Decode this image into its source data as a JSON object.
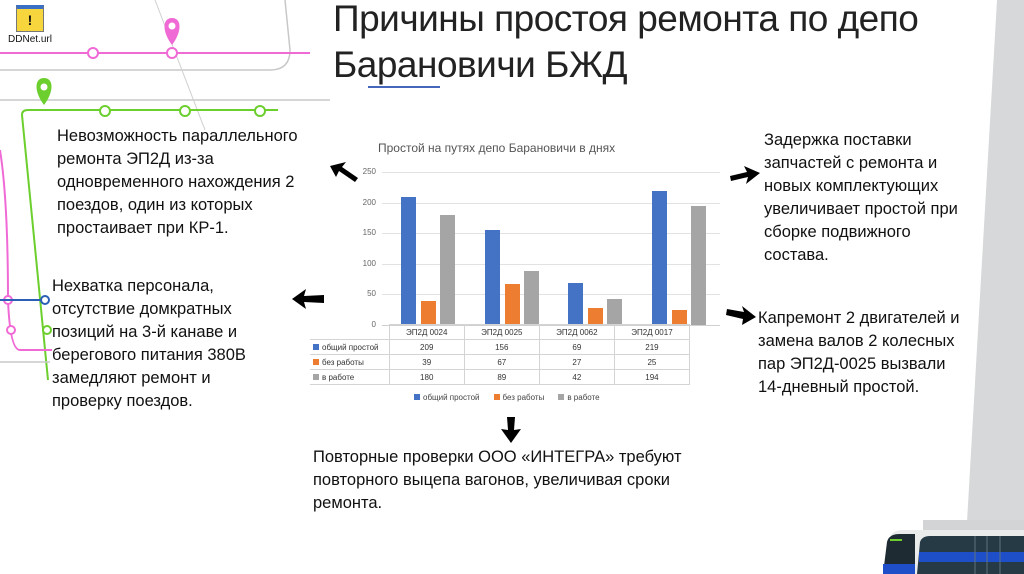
{
  "desktop_icon": {
    "label": "DDNet.url",
    "icon": "warning-shortcut-icon"
  },
  "slide": {
    "title_line1": "Причины простоя ремонта по депо",
    "title_line2": "Барановичи БЖД"
  },
  "notes": {
    "left_top": [
      "Невозможность параллельного",
      "ремонта ЭП2Д из-за",
      "одновременного нахождения 2",
      "поездов, один из которых",
      "простаивает при КР-1."
    ],
    "left_bottom": [
      "Нехватка персонала,",
      "отсутствие домкратных",
      "позиций на 3-й канаве и",
      "берегового питания 380В",
      "замедляют ремонт и",
      "проверку поездов."
    ],
    "right_top": [
      "Задержка поставки",
      "запчастей с ремонта и",
      "новых комплектующих",
      "увеличивает простой при",
      "сборке подвижного",
      "состава."
    ],
    "right_bottom": [
      "Капремонт 2 двигателей и",
      "замена валов 2 колесных",
      "пар ЭП2Д-0025 вызвали",
      "14-дневный простой."
    ],
    "bottom": [
      "Повторные проверки ООО «ИНТЕГРА» требуют",
      "повторного выцепа вагонов, увеличивая сроки",
      "ремонта."
    ]
  },
  "arrows": {
    "left_top": "arrow-upleft",
    "left_bottom": "arrow-left",
    "right_top": "arrow-right",
    "right_bottom": "arrow-right",
    "bottom": "arrow-down"
  },
  "colors": {
    "series1": "#4472c4",
    "series2": "#ed7d31",
    "series3": "#a5a5a5",
    "pink_line": "#f06ad6",
    "green_line": "#6ccf2e",
    "blue_line": "#2b5fb5"
  },
  "chart_data": {
    "type": "bar",
    "title": "Простой на путях депо Барановичи в днях",
    "categories": [
      "ЭП2Д 0024",
      "ЭП2Д 0025",
      "ЭП2Д 0062",
      "ЭП2Д 0017"
    ],
    "series": [
      {
        "name": "общий простой",
        "values": [
          209,
          156,
          69,
          219
        ],
        "color": "#4472c4"
      },
      {
        "name": "без работы",
        "values": [
          39,
          67,
          27,
          25
        ],
        "color": "#ed7d31"
      },
      {
        "name": "в работе",
        "values": [
          180,
          89,
          42,
          194
        ],
        "color": "#a5a5a5"
      }
    ],
    "yticks": [
      0,
      50,
      100,
      150,
      200,
      250
    ],
    "ylim": [
      0,
      250
    ],
    "xlabel": "",
    "ylabel": "",
    "grid": true,
    "legend_position": "bottom",
    "data_table": true
  }
}
